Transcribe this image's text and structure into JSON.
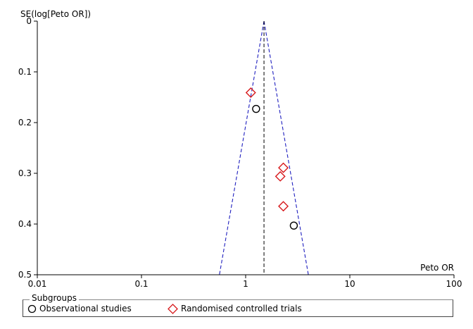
{
  "chart_data": {
    "type": "scatter",
    "ylabel": "SE(log[Peto OR])",
    "xlabel": "Peto OR",
    "x_scale": "log",
    "xlim": [
      0.01,
      100
    ],
    "ylim": [
      0,
      0.5
    ],
    "y_reversed": true,
    "x_ticks": [
      "0.01",
      "0.1",
      "1",
      "10",
      "100"
    ],
    "y_ticks": [
      "0",
      "0.1",
      "0.2",
      "0.3",
      "0.4",
      "0.5"
    ],
    "pooled_estimate": 1.5,
    "funnel": {
      "apex": [
        1.5,
        0
      ],
      "base_left": [
        0.56,
        0.5
      ],
      "base_right": [
        4.0,
        0.5
      ]
    },
    "series": [
      {
        "name": "Observational studies",
        "marker": "circle",
        "color": "#000000",
        "points": [
          {
            "x": 1.26,
            "y": 0.173
          },
          {
            "x": 2.9,
            "y": 0.403
          }
        ]
      },
      {
        "name": "Randomised controlled trials",
        "marker": "diamond",
        "color": "#d7191c",
        "points": [
          {
            "x": 1.12,
            "y": 0.141
          },
          {
            "x": 2.3,
            "y": 0.289
          },
          {
            "x": 2.15,
            "y": 0.306
          },
          {
            "x": 2.3,
            "y": 0.365
          }
        ]
      }
    ],
    "funnel_color": "#1f1fbf",
    "legend": {
      "title": "Subgroups",
      "placement": "bottom"
    }
  }
}
